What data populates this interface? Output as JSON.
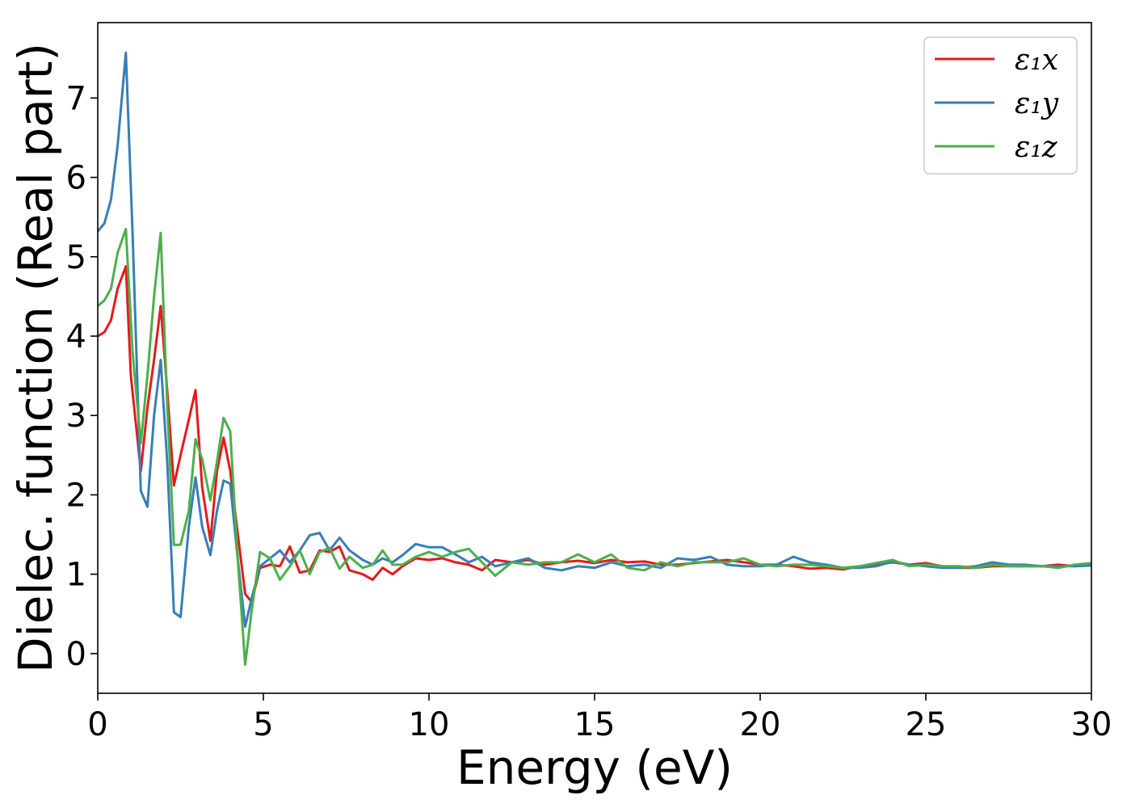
{
  "chart_data": {
    "type": "line",
    "title": "",
    "xlabel": "Energy (eV)",
    "ylabel": "Dielec. function (Real part)",
    "xlim": [
      0,
      30
    ],
    "ylim": [
      -0.5,
      7.95
    ],
    "xticks": [
      0,
      5,
      10,
      15,
      20,
      25,
      30
    ],
    "yticks": [
      0,
      1,
      2,
      3,
      4,
      5,
      6,
      7
    ],
    "grid": false,
    "legend_position": "top-right",
    "series": [
      {
        "name": "ε₁x",
        "color": "#e41a1c",
        "x": [
          0,
          0.2,
          0.4,
          0.6,
          0.85,
          1.0,
          1.3,
          1.5,
          1.7,
          1.9,
          2.1,
          2.3,
          2.5,
          2.75,
          2.95,
          3.15,
          3.4,
          3.6,
          3.8,
          4.0,
          4.2,
          4.45,
          4.65,
          4.9,
          5.2,
          5.5,
          5.8,
          6.1,
          6.4,
          6.7,
          7.0,
          7.3,
          7.6,
          8.0,
          8.3,
          8.6,
          8.9,
          9.2,
          9.6,
          10.0,
          10.4,
          10.8,
          11.2,
          11.6,
          12.0,
          12.5,
          13.0,
          13.5,
          14.0,
          14.5,
          15.0,
          15.5,
          16.0,
          16.5,
          17.0,
          17.5,
          18.0,
          18.5,
          19.0,
          19.5,
          20.0,
          20.5,
          21.0,
          21.5,
          22.0,
          22.5,
          23.0,
          23.5,
          24.0,
          24.5,
          25.0,
          25.5,
          26.0,
          26.5,
          27.0,
          27.5,
          28.0,
          28.5,
          29.0,
          29.5,
          30.0
        ],
        "y": [
          4.0,
          4.05,
          4.2,
          4.6,
          4.88,
          3.5,
          2.3,
          3.1,
          3.7,
          4.38,
          3.3,
          2.12,
          2.5,
          2.95,
          3.32,
          2.1,
          1.42,
          2.3,
          2.72,
          2.3,
          1.6,
          0.75,
          0.65,
          1.08,
          1.12,
          1.1,
          1.35,
          1.02,
          1.05,
          1.3,
          1.28,
          1.35,
          1.05,
          1.0,
          0.93,
          1.08,
          1.0,
          1.1,
          1.2,
          1.18,
          1.2,
          1.15,
          1.12,
          1.05,
          1.18,
          1.15,
          1.18,
          1.12,
          1.15,
          1.17,
          1.14,
          1.18,
          1.15,
          1.16,
          1.12,
          1.12,
          1.14,
          1.16,
          1.18,
          1.15,
          1.12,
          1.12,
          1.1,
          1.07,
          1.08,
          1.06,
          1.1,
          1.12,
          1.15,
          1.12,
          1.14,
          1.1,
          1.08,
          1.08,
          1.1,
          1.1,
          1.1,
          1.1,
          1.12,
          1.1,
          1.13
        ]
      },
      {
        "name": "ε₁y",
        "color": "#377eb8",
        "x": [
          0,
          0.2,
          0.4,
          0.6,
          0.85,
          1.05,
          1.3,
          1.5,
          1.7,
          1.9,
          2.1,
          2.3,
          2.5,
          2.75,
          2.95,
          3.15,
          3.4,
          3.6,
          3.8,
          4.0,
          4.2,
          4.45,
          4.65,
          4.9,
          5.2,
          5.5,
          5.8,
          6.1,
          6.4,
          6.7,
          7.0,
          7.3,
          7.6,
          8.0,
          8.3,
          8.6,
          8.9,
          9.2,
          9.6,
          10.0,
          10.4,
          10.8,
          11.2,
          11.6,
          12.0,
          12.5,
          13.0,
          13.5,
          14.0,
          14.5,
          15.0,
          15.5,
          16.0,
          16.5,
          17.0,
          17.5,
          18.0,
          18.5,
          19.0,
          19.5,
          20.0,
          20.5,
          21.0,
          21.5,
          22.0,
          22.5,
          23.0,
          23.5,
          24.0,
          24.5,
          25.0,
          25.5,
          26.0,
          26.5,
          27.0,
          27.5,
          28.0,
          28.5,
          29.0,
          29.5,
          30.0
        ],
        "y": [
          5.32,
          5.42,
          5.72,
          6.4,
          7.57,
          5.3,
          2.05,
          1.85,
          3.0,
          3.7,
          2.4,
          0.52,
          0.46,
          1.6,
          2.22,
          1.6,
          1.24,
          1.8,
          2.18,
          2.14,
          1.3,
          0.34,
          0.7,
          1.1,
          1.2,
          1.3,
          1.15,
          1.3,
          1.49,
          1.52,
          1.3,
          1.46,
          1.3,
          1.18,
          1.12,
          1.2,
          1.15,
          1.24,
          1.38,
          1.34,
          1.34,
          1.25,
          1.15,
          1.22,
          1.1,
          1.15,
          1.2,
          1.08,
          1.05,
          1.1,
          1.08,
          1.15,
          1.1,
          1.12,
          1.08,
          1.2,
          1.18,
          1.22,
          1.12,
          1.1,
          1.1,
          1.12,
          1.22,
          1.15,
          1.12,
          1.08,
          1.08,
          1.1,
          1.16,
          1.12,
          1.1,
          1.08,
          1.08,
          1.1,
          1.15,
          1.12,
          1.12,
          1.1,
          1.1,
          1.1,
          1.11
        ]
      },
      {
        "name": "ε₁z",
        "color": "#4daf4a",
        "x": [
          0,
          0.2,
          0.4,
          0.6,
          0.85,
          1.05,
          1.3,
          1.5,
          1.7,
          1.9,
          2.1,
          2.3,
          2.5,
          2.75,
          2.95,
          3.15,
          3.4,
          3.6,
          3.8,
          4.0,
          4.2,
          4.45,
          4.65,
          4.9,
          5.2,
          5.5,
          5.8,
          6.1,
          6.4,
          6.7,
          7.0,
          7.3,
          7.6,
          8.0,
          8.3,
          8.6,
          8.9,
          9.2,
          9.6,
          10.0,
          10.4,
          10.8,
          11.2,
          11.6,
          12.0,
          12.5,
          13.0,
          13.5,
          14.0,
          14.5,
          15.0,
          15.5,
          16.0,
          16.5,
          17.0,
          17.5,
          18.0,
          18.5,
          19.0,
          19.5,
          20.0,
          20.5,
          21.0,
          21.5,
          22.0,
          22.5,
          23.0,
          23.5,
          24.0,
          24.5,
          25.0,
          25.5,
          26.0,
          26.5,
          27.0,
          27.5,
          28.0,
          28.5,
          29.0,
          29.5,
          30.0
        ],
        "y": [
          4.38,
          4.45,
          4.6,
          5.05,
          5.35,
          3.8,
          2.65,
          3.5,
          4.5,
          5.3,
          3.1,
          1.37,
          1.37,
          1.8,
          2.7,
          2.45,
          1.93,
          2.42,
          2.97,
          2.8,
          1.35,
          -0.14,
          0.55,
          1.28,
          1.2,
          0.93,
          1.1,
          1.3,
          1.0,
          1.28,
          1.33,
          1.07,
          1.22,
          1.08,
          1.12,
          1.3,
          1.12,
          1.12,
          1.22,
          1.28,
          1.22,
          1.28,
          1.32,
          1.15,
          0.98,
          1.15,
          1.12,
          1.15,
          1.15,
          1.25,
          1.15,
          1.25,
          1.08,
          1.05,
          1.15,
          1.1,
          1.15,
          1.15,
          1.15,
          1.2,
          1.12,
          1.1,
          1.12,
          1.12,
          1.1,
          1.08,
          1.1,
          1.14,
          1.18,
          1.1,
          1.12,
          1.1,
          1.1,
          1.08,
          1.12,
          1.1,
          1.1,
          1.1,
          1.08,
          1.12,
          1.14
        ]
      }
    ]
  }
}
